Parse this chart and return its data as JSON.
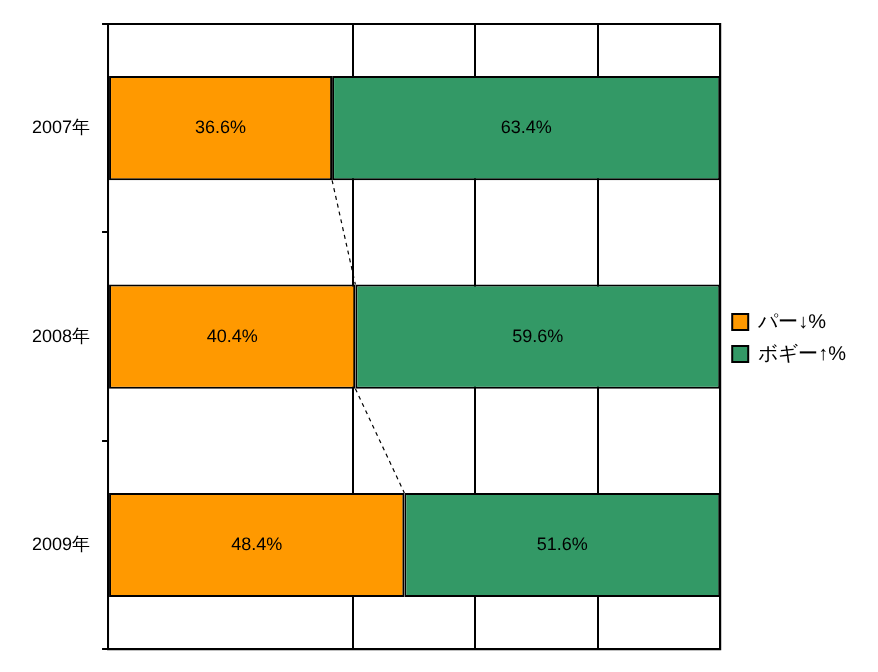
{
  "chart_data": {
    "type": "bar",
    "orientation": "horizontal",
    "stacked": true,
    "categories": [
      "2007年",
      "2008年",
      "2009年"
    ],
    "series": [
      {
        "name": "パー↓%",
        "color": "#ff9900",
        "values": [
          36.6,
          40.4,
          48.4
        ],
        "value_labels": [
          "36.6%",
          "40.4%",
          "48.4%"
        ]
      },
      {
        "name": "ボギー↑%",
        "color": "#339966",
        "values": [
          63.4,
          59.6,
          51.6
        ],
        "value_labels": [
          "63.4%",
          "59.6%",
          "51.6%"
        ]
      }
    ],
    "xlim": [
      0,
      100
    ],
    "xticks": [
      {
        "value": 0,
        "label": null
      },
      {
        "value": 40,
        "label": null
      },
      {
        "value": 60,
        "label": null
      },
      {
        "value": 80,
        "label": null
      },
      {
        "value": 100,
        "label": null
      }
    ],
    "tick_labels": "y",
    "grid": "x",
    "legend": "right"
  }
}
